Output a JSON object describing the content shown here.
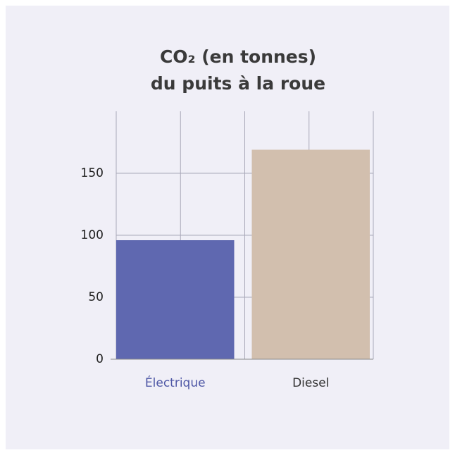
{
  "chart_data": {
    "type": "bar",
    "title": [
      "CO₂ (en tonnes)",
      "du puits à la roue"
    ],
    "categories": [
      "Électrique",
      "Diesel"
    ],
    "values": [
      96,
      169
    ],
    "colors": [
      "#5f68b0",
      "#d2bfae"
    ],
    "label_colors": [
      "#4f58a6",
      "#333333"
    ],
    "ylim": [
      0,
      200
    ],
    "yticks": [
      0,
      50,
      100,
      150
    ],
    "grid": true
  }
}
